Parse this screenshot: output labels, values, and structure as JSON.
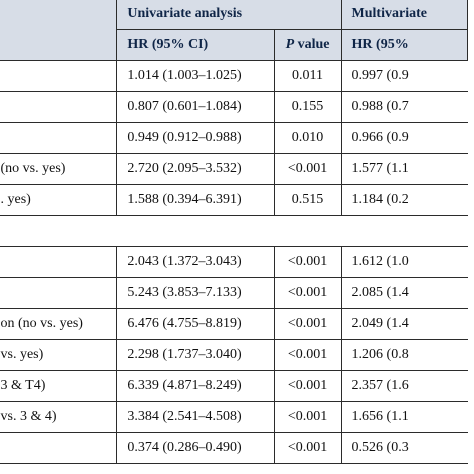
{
  "header": {
    "univariate": "Univariate analysis",
    "multivariate": "Multivariate",
    "hr_label": "HR (95% CI)",
    "p_italic": "P",
    "p_rest": " value",
    "mhr_label": "HR (95%"
  },
  "rows": [
    {
      "label": "",
      "hr": "1.014 (1.003–1.025)",
      "p": "0.011",
      "mhr": "0.997 (0.9"
    },
    {
      "label": "",
      "hr": "0.807 (0.601–1.084)",
      "p": "0.155",
      "mhr": "0.988 (0.7"
    },
    {
      "label": "",
      "hr": "0.949 (0.912–0.988)",
      "p": "0.010",
      "mhr": "0.966 (0.9"
    },
    {
      "label": "(no vs. yes)",
      "hr": "2.720 (2.095–3.532)",
      "p": "<0.001",
      "mhr": "1.577 (1.1"
    },
    {
      "label": ". yes)",
      "hr": "1.588 (0.394–6.391)",
      "p": "0.515",
      "mhr": "1.184 (0.2"
    },
    {
      "label": "",
      "hr": "",
      "p": "",
      "mhr": ""
    },
    {
      "label": "",
      "hr": "2.043 (1.372–3.043)",
      "p": "<0.001",
      "mhr": "1.612 (1.0"
    },
    {
      "label": "",
      "hr": "5.243 (3.853–7.133)",
      "p": "<0.001",
      "mhr": "2.085 (1.4"
    },
    {
      "label": "on (no vs. yes)",
      "hr": "6.476 (4.755–8.819)",
      "p": "<0.001",
      "mhr": "2.049 (1.4"
    },
    {
      "label": "vs. yes)",
      "hr": "2.298 (1.737–3.040)",
      "p": "<0.001",
      "mhr": "1.206 (0.8"
    },
    {
      "label": "3 & T4)",
      "hr": "6.339 (4.871–8.249)",
      "p": "<0.001",
      "mhr": "2.357 (1.6"
    },
    {
      "label": "vs. 3 & 4)",
      "hr": "3.384 (2.541–4.508)",
      "p": "<0.001",
      "mhr": "1.656 (1.1"
    },
    {
      "label": "",
      "hr": "0.374 (0.286–0.490)",
      "p": "<0.001",
      "mhr": "0.526 (0.3"
    }
  ]
}
